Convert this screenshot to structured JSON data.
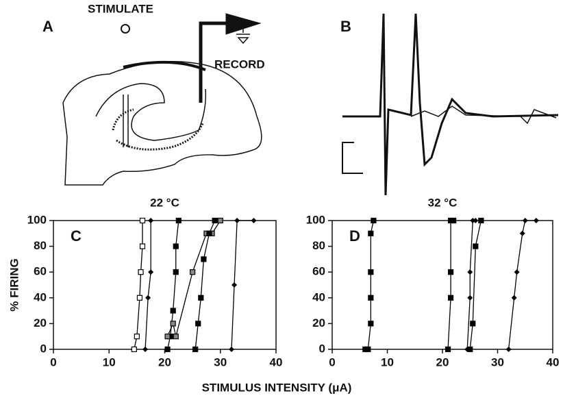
{
  "figure": {
    "panel_labels": [
      "A",
      "B",
      "C",
      "D"
    ],
    "stimulate": "STIMULATE",
    "record": "RECORD",
    "xlabel": "STIMULUS INTENSITY (μA)"
  },
  "chart_data": [
    {
      "type": "scatter",
      "title": "22 °C",
      "ylabel": "% FIRING",
      "xlim": [
        0,
        40
      ],
      "ylim": [
        0,
        100
      ],
      "xticks": [
        0,
        10,
        20,
        30,
        40
      ],
      "yticks": [
        0,
        20,
        40,
        60,
        80,
        100
      ],
      "color": "#000000",
      "series": [
        {
          "marker": "square-open",
          "x": [
            14.5,
            15,
            15.5,
            15.7,
            16,
            16
          ],
          "values": [
            0,
            10,
            40,
            60,
            80,
            100
          ]
        },
        {
          "marker": "diamond",
          "x": [
            16.5,
            17,
            17.5,
            17.5
          ],
          "values": [
            0,
            40,
            60,
            100
          ]
        },
        {
          "marker": "square",
          "x": [
            20.5,
            21,
            21.5,
            22,
            22,
            22.5
          ],
          "values": [
            0,
            10,
            30,
            60,
            80,
            100
          ]
        },
        {
          "marker": "square-hatched",
          "x": [
            20.5,
            21.5,
            22,
            25,
            27.5,
            28.5,
            30
          ],
          "values": [
            10,
            20,
            10,
            60,
            90,
            90,
            100
          ]
        },
        {
          "marker": "square",
          "x": [
            25.5,
            26,
            26.5,
            27,
            28,
            29
          ],
          "values": [
            0,
            20,
            40,
            70,
            90,
            100
          ]
        },
        {
          "marker": "diamond",
          "x": [
            32,
            32.5,
            33,
            36
          ],
          "values": [
            0,
            50,
            100,
            100
          ]
        }
      ]
    },
    {
      "type": "scatter",
      "title": "32 °C",
      "xlim": [
        0,
        40
      ],
      "ylim": [
        0,
        100
      ],
      "xticks": [
        0,
        10,
        20,
        30,
        40
      ],
      "yticks": [
        0,
        20,
        40,
        60,
        80,
        100
      ],
      "color": "#000000",
      "series": [
        {
          "marker": "square",
          "x": [
            6,
            6.5,
            7,
            7,
            7,
            7,
            7.5
          ],
          "values": [
            0,
            0,
            20,
            40,
            60,
            90,
            100
          ]
        },
        {
          "marker": "square",
          "x": [
            21,
            21.5,
            21.5,
            21.5,
            22
          ],
          "values": [
            0,
            40,
            60,
            100,
            100
          ]
        },
        {
          "marker": "diamond",
          "x": [
            24.5,
            25,
            25,
            25.5,
            26
          ],
          "values": [
            0,
            40,
            60,
            100,
            100
          ]
        },
        {
          "marker": "square",
          "x": [
            25,
            25.5,
            26,
            27
          ],
          "values": [
            0,
            20,
            80,
            100
          ]
        },
        {
          "marker": "diamond",
          "x": [
            32,
            33,
            33.5,
            34.5,
            35,
            37
          ],
          "values": [
            0,
            40,
            60,
            90,
            100,
            100
          ]
        }
      ]
    }
  ]
}
